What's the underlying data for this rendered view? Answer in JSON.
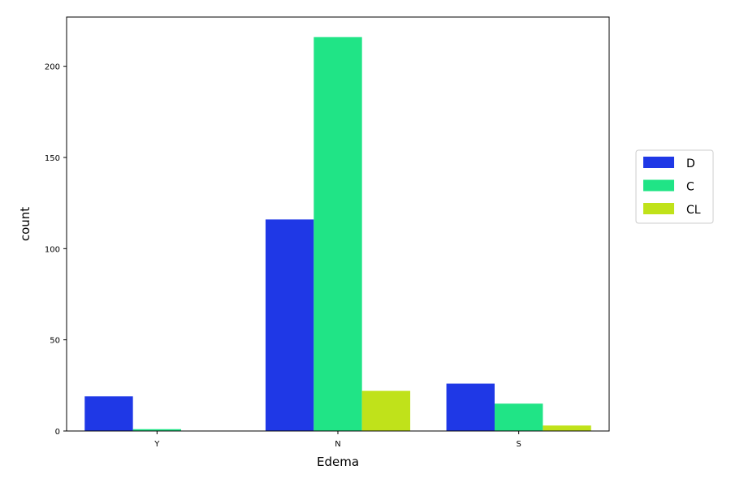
{
  "chart_data": {
    "type": "bar",
    "title": "",
    "xlabel": "Edema",
    "ylabel": "count",
    "categories": [
      "Y",
      "N",
      "S"
    ],
    "series": [
      {
        "name": "D",
        "color": "#1f38e6",
        "values": [
          19,
          116,
          26
        ]
      },
      {
        "name": "C",
        "color": "#20e486",
        "values": [
          1,
          216,
          15
        ]
      },
      {
        "name": "CL",
        "color": "#c0e21a",
        "values": [
          0,
          22,
          3
        ]
      }
    ],
    "ylim": [
      0,
      227
    ],
    "yticks": [
      0,
      50,
      100,
      150,
      200
    ],
    "grid": false,
    "legend_position": "right"
  }
}
